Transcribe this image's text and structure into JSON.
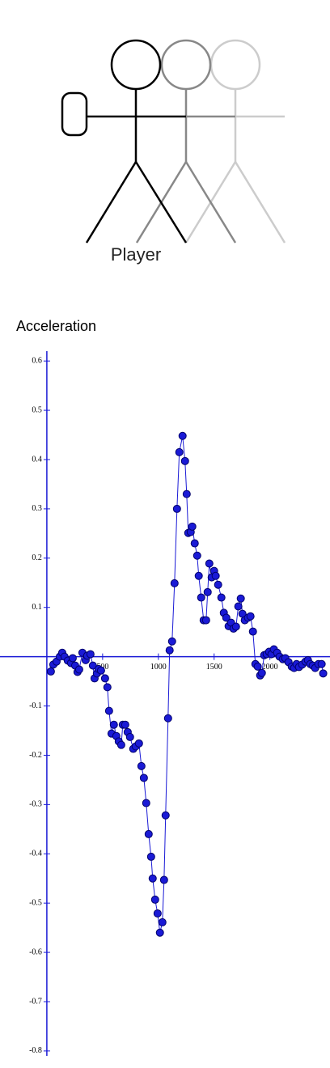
{
  "header": {
    "label": "Player"
  },
  "chart_data": {
    "type": "line",
    "title": "Acceleration",
    "x": [
      36,
      58,
      87,
      116,
      138,
      159,
      188,
      217,
      232,
      254,
      275,
      290,
      319,
      348,
      362,
      391,
      413,
      428,
      449,
      464,
      486,
      522,
      543,
      558,
      580,
      601,
      623,
      645,
      667,
      681,
      703,
      725,
      746,
      775,
      797,
      826,
      848,
      870,
      891,
      913,
      935,
      949,
      971,
      993,
      1014,
      1036,
      1051,
      1065,
      1087,
      1101,
      1123,
      1145,
      1167,
      1188,
      1217,
      1239,
      1254,
      1268,
      1290,
      1304,
      1326,
      1348,
      1362,
      1384,
      1406,
      1428,
      1442,
      1457,
      1478,
      1500,
      1514,
      1536,
      1565,
      1587,
      1609,
      1630,
      1652,
      1674,
      1696,
      1717,
      1739,
      1754,
      1775,
      1804,
      1826,
      1848,
      1870,
      1891,
      1913,
      1928,
      1949,
      1971,
      1993,
      2014,
      2036,
      2065,
      2087,
      2116,
      2138,
      2167,
      2196,
      2217,
      2239,
      2261,
      2290,
      2319,
      2341,
      2362,
      2384,
      2406,
      2435,
      2464,
      2478
    ],
    "series": [
      {
        "color": "#1a1ad6",
        "values": [
          -0.03,
          -0.016,
          -0.01,
          0,
          0.008,
          0,
          -0.008,
          -0.013,
          -0.003,
          -0.018,
          -0.031,
          -0.026,
          0.008,
          -0.007,
          0.002,
          0.005,
          -0.018,
          -0.044,
          -0.034,
          -0.025,
          -0.028,
          -0.044,
          -0.062,
          -0.11,
          -0.156,
          -0.138,
          -0.161,
          -0.172,
          -0.179,
          -0.138,
          -0.138,
          -0.153,
          -0.163,
          -0.187,
          -0.182,
          -0.176,
          -0.222,
          -0.246,
          -0.297,
          -0.36,
          -0.406,
          -0.45,
          -0.493,
          -0.521,
          -0.56,
          -0.539,
          -0.453,
          -0.322,
          -0.125,
          0.013,
          0.031,
          0.149,
          0.3,
          0.415,
          0.448,
          0.397,
          0.33,
          0.251,
          0.253,
          0.264,
          0.23,
          0.205,
          0.164,
          0.12,
          0.074,
          0.074,
          0.131,
          0.189,
          0.161,
          0.174,
          0.164,
          0.146,
          0.12,
          0.089,
          0.079,
          0.062,
          0.069,
          0.057,
          0.061,
          0.102,
          0.118,
          0.087,
          0.074,
          0.079,
          0.082,
          0.051,
          -0.015,
          -0.02,
          -0.038,
          -0.033,
          0.003,
          0.005,
          0.01,
          0.005,
          0.015,
          0.008,
          0,
          -0.005,
          -0.003,
          -0.011,
          -0.02,
          -0.023,
          -0.015,
          -0.021,
          -0.016,
          -0.01,
          -0.007,
          -0.015,
          -0.018,
          -0.023,
          -0.015,
          -0.015,
          -0.034
        ]
      }
    ],
    "xlim": [
      -420,
      2510
    ],
    "xticks": [
      500,
      1000,
      1500,
      2000
    ],
    "ylim": [
      -0.81,
      0.62
    ],
    "yticks": [
      0.6,
      0.5,
      0.4,
      0.3,
      0.2,
      0.1,
      -0.1,
      -0.2,
      -0.3,
      -0.4,
      -0.5,
      -0.6,
      -0.7,
      -0.8
    ],
    "axis_color": "#1a1ad6"
  }
}
